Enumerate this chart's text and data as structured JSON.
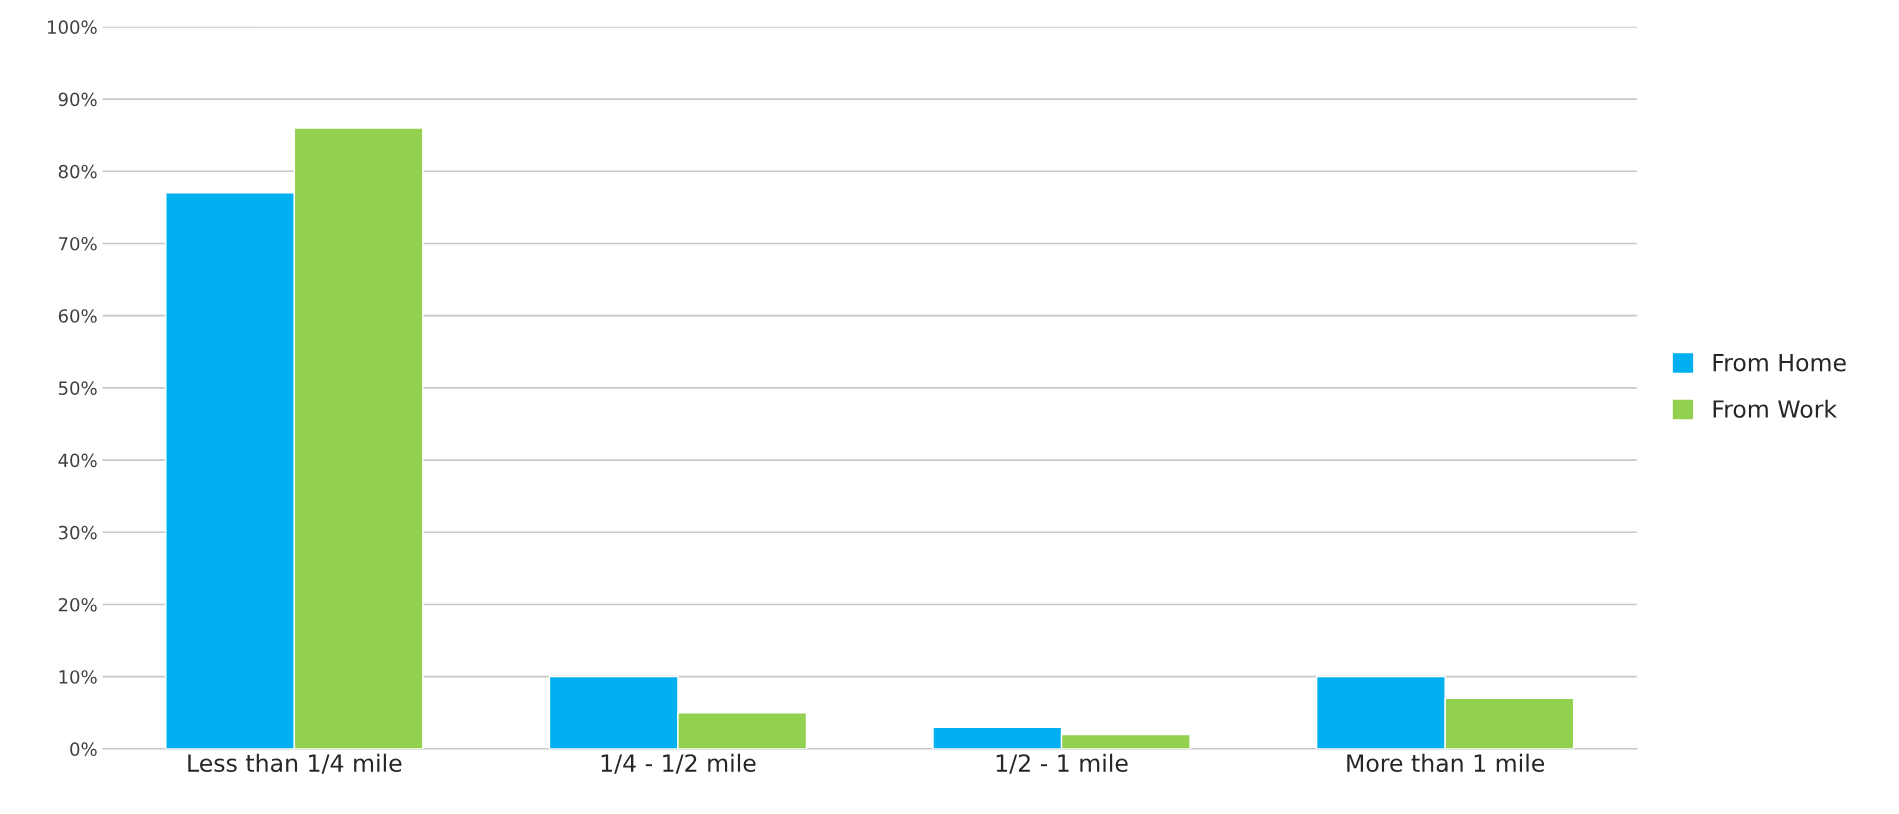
{
  "chart_data": {
    "type": "bar",
    "categories": [
      "Less than 1/4 mile",
      "1/4 - 1/2 mile",
      "1/2 - 1 mile",
      "More than 1 mile"
    ],
    "series": [
      {
        "name": "From Home",
        "color": "#00b0f0",
        "values": [
          77,
          10,
          3,
          10
        ]
      },
      {
        "name": "From Work",
        "color": "#92d050",
        "values": [
          86,
          5,
          2,
          7
        ]
      }
    ],
    "ylim": [
      0,
      100
    ],
    "yticks": [
      {
        "value": 0,
        "label": "0%"
      },
      {
        "value": 10,
        "label": "10%"
      },
      {
        "value": 20,
        "label": "20%"
      },
      {
        "value": 30,
        "label": "30%"
      },
      {
        "value": 40,
        "label": "40%"
      },
      {
        "value": 50,
        "label": "50%"
      },
      {
        "value": 60,
        "label": "60%"
      },
      {
        "value": 70,
        "label": "70%"
      },
      {
        "value": 80,
        "label": "80%"
      },
      {
        "value": 90,
        "label": "90%"
      },
      {
        "value": 100,
        "label": "100%"
      }
    ],
    "grid": "y",
    "legend": "right"
  }
}
